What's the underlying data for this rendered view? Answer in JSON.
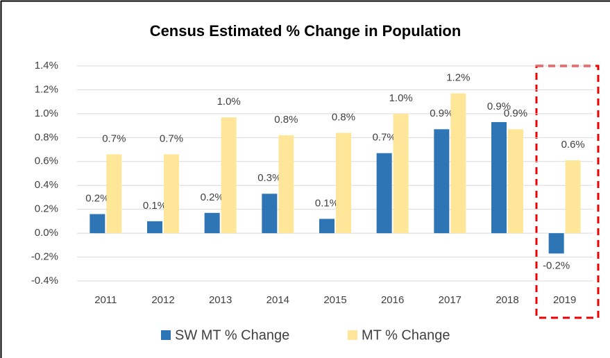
{
  "chart_data": {
    "type": "bar",
    "title": "Census Estimated % Change in Population",
    "categories": [
      "2011",
      "2012",
      "2013",
      "2014",
      "2015",
      "2016",
      "2017",
      "2018",
      "2019"
    ],
    "series": [
      {
        "name": "SW MT % Change",
        "color": "#2e75b6",
        "values": [
          0.16,
          0.1,
          0.17,
          0.33,
          0.12,
          0.67,
          0.87,
          0.93,
          -0.17
        ],
        "value_labels": [
          "0.2%",
          "0.1%",
          "0.2%",
          "0.3%",
          "0.1%",
          "0.7%",
          "0.9%",
          "0.9%",
          "-0.2%"
        ]
      },
      {
        "name": "MT % Change",
        "color": "#ffe699",
        "values": [
          0.66,
          0.66,
          0.97,
          0.82,
          0.84,
          1.0,
          1.17,
          0.87,
          0.61
        ],
        "value_labels": [
          "0.7%",
          "0.7%",
          "1.0%",
          "0.8%",
          "0.8%",
          "1.0%",
          "1.2%",
          "0.9%",
          "0.6%"
        ]
      }
    ],
    "ylim": [
      -0.4,
      1.4
    ],
    "yticks": [
      {
        "value": -0.4,
        "label": "-0.4%"
      },
      {
        "value": -0.2,
        "label": "-0.2%"
      },
      {
        "value": 0,
        "label": "0.0%"
      },
      {
        "value": 0.2,
        "label": "0.2%"
      },
      {
        "value": 0.4,
        "label": "0.4%"
      },
      {
        "value": 0.6,
        "label": "0.6%"
      },
      {
        "value": 0.8,
        "label": "0.8%"
      },
      {
        "value": 1.0,
        "label": "1.0%"
      },
      {
        "value": 1.2,
        "label": "1.2%"
      },
      {
        "value": 1.4,
        "label": "1.4%"
      }
    ],
    "grid": true
  }
}
